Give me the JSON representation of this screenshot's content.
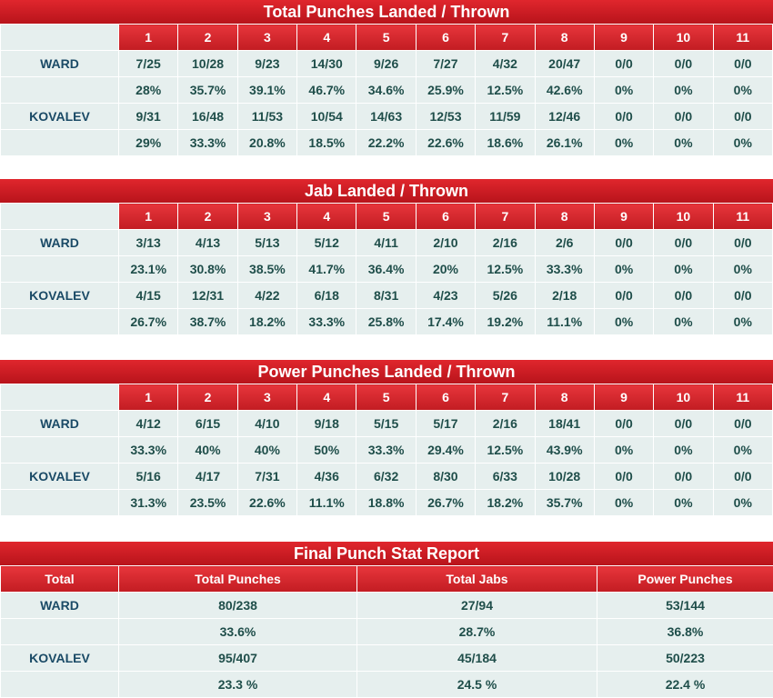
{
  "rounds": [
    "1",
    "2",
    "3",
    "4",
    "5",
    "6",
    "7",
    "8",
    "9",
    "10",
    "11"
  ],
  "sections": [
    {
      "title": "Total Punches Landed / Thrown",
      "fighters": [
        {
          "name": "WARD",
          "counts": [
            "7/25",
            "10/28",
            "9/23",
            "14/30",
            "9/26",
            "7/27",
            "4/32",
            "20/47",
            "0/0",
            "0/0",
            "0/0"
          ],
          "pcts": [
            "28%",
            "35.7%",
            "39.1%",
            "46.7%",
            "34.6%",
            "25.9%",
            "12.5%",
            "42.6%",
            "0%",
            "0%",
            "0%"
          ]
        },
        {
          "name": "KOVALEV",
          "counts": [
            "9/31",
            "16/48",
            "11/53",
            "10/54",
            "14/63",
            "12/53",
            "11/59",
            "12/46",
            "0/0",
            "0/0",
            "0/0"
          ],
          "pcts": [
            "29%",
            "33.3%",
            "20.8%",
            "18.5%",
            "22.2%",
            "22.6%",
            "18.6%",
            "26.1%",
            "0%",
            "0%",
            "0%"
          ]
        }
      ]
    },
    {
      "title": "Jab Landed / Thrown",
      "fighters": [
        {
          "name": "WARD",
          "counts": [
            "3/13",
            "4/13",
            "5/13",
            "5/12",
            "4/11",
            "2/10",
            "2/16",
            "2/6",
            "0/0",
            "0/0",
            "0/0"
          ],
          "pcts": [
            "23.1%",
            "30.8%",
            "38.5%",
            "41.7%",
            "36.4%",
            "20%",
            "12.5%",
            "33.3%",
            "0%",
            "0%",
            "0%"
          ]
        },
        {
          "name": "KOVALEV",
          "counts": [
            "4/15",
            "12/31",
            "4/22",
            "6/18",
            "8/31",
            "4/23",
            "5/26",
            "2/18",
            "0/0",
            "0/0",
            "0/0"
          ],
          "pcts": [
            "26.7%",
            "38.7%",
            "18.2%",
            "33.3%",
            "25.8%",
            "17.4%",
            "19.2%",
            "11.1%",
            "0%",
            "0%",
            "0%"
          ]
        }
      ]
    },
    {
      "title": "Power Punches Landed / Thrown",
      "fighters": [
        {
          "name": "WARD",
          "counts": [
            "4/12",
            "6/15",
            "4/10",
            "9/18",
            "5/15",
            "5/17",
            "2/16",
            "18/41",
            "0/0",
            "0/0",
            "0/0"
          ],
          "pcts": [
            "33.3%",
            "40%",
            "40%",
            "50%",
            "33.3%",
            "29.4%",
            "12.5%",
            "43.9%",
            "0%",
            "0%",
            "0%"
          ]
        },
        {
          "name": "KOVALEV",
          "counts": [
            "5/16",
            "4/17",
            "7/31",
            "4/36",
            "6/32",
            "8/30",
            "6/33",
            "10/28",
            "0/0",
            "0/0",
            "0/0"
          ],
          "pcts": [
            "31.3%",
            "23.5%",
            "22.6%",
            "11.1%",
            "18.8%",
            "26.7%",
            "18.2%",
            "35.7%",
            "0%",
            "0%",
            "0%"
          ]
        }
      ]
    }
  ],
  "final": {
    "title": "Final Punch Stat Report",
    "headers": [
      "Total",
      "Total Punches",
      "Total Jabs",
      "Power Punches"
    ],
    "rows": [
      {
        "name": "WARD",
        "values": [
          "80/238",
          "27/94",
          "53/144"
        ]
      },
      {
        "name": "",
        "values": [
          "33.6%",
          "28.7%",
          "36.8%"
        ]
      },
      {
        "name": "KOVALEV",
        "values": [
          "95/407",
          "45/184",
          "50/223"
        ]
      },
      {
        "name": "",
        "values": [
          "23.3 %",
          "24.5 %",
          "22.4 %"
        ]
      }
    ]
  },
  "colors": {
    "accent": "#d21f26",
    "cell": "#e6efee",
    "text": "#1f4e4a"
  }
}
